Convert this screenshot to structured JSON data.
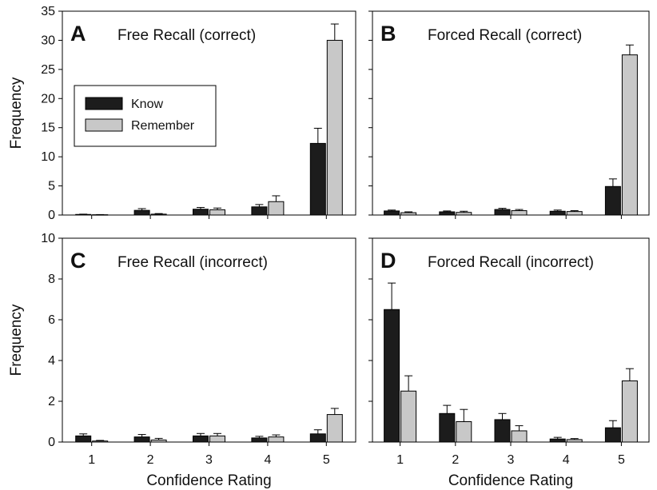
{
  "chart_data": [
    {
      "type": "bar",
      "letter": "A",
      "title": "Free Recall (correct)",
      "categories": [
        "1",
        "2",
        "3",
        "4",
        "5"
      ],
      "ylim": [
        0,
        35
      ],
      "yticks": [
        "0",
        "5",
        "10",
        "15",
        "20",
        "25",
        "30",
        "35"
      ],
      "ylabel": "Frequency",
      "xlabel": "",
      "legend": "upper-left",
      "series": [
        {
          "name": "Know",
          "color": "#1c1c1c",
          "values": [
            0.1,
            0.8,
            1.0,
            1.4,
            12.3
          ],
          "errors": [
            0.05,
            0.3,
            0.3,
            0.4,
            2.6
          ]
        },
        {
          "name": "Remember",
          "color": "#c8c8c8",
          "values": [
            0.05,
            0.15,
            0.9,
            2.3,
            30.0
          ],
          "errors": [
            0.03,
            0.1,
            0.3,
            1.0,
            2.8
          ]
        }
      ]
    },
    {
      "type": "bar",
      "letter": "B",
      "title": "Forced Recall (correct)",
      "categories": [
        "1",
        "2",
        "3",
        "4",
        "5"
      ],
      "ylim": [
        0,
        35
      ],
      "yticks": [],
      "ylabel": "",
      "xlabel": "",
      "series": [
        {
          "name": "Know",
          "color": "#1c1c1c",
          "values": [
            0.7,
            0.55,
            0.95,
            0.65,
            4.9
          ],
          "errors": [
            0.15,
            0.15,
            0.2,
            0.2,
            1.3
          ]
        },
        {
          "name": "Remember",
          "color": "#c8c8c8",
          "values": [
            0.4,
            0.45,
            0.75,
            0.6,
            27.5
          ],
          "errors": [
            0.15,
            0.2,
            0.2,
            0.15,
            1.7
          ]
        }
      ]
    },
    {
      "type": "bar",
      "letter": "C",
      "title": "Free Recall (incorrect)",
      "categories": [
        "1",
        "2",
        "3",
        "4",
        "5"
      ],
      "ylim": [
        0,
        10
      ],
      "yticks": [
        "0",
        "2",
        "4",
        "6",
        "8",
        "10"
      ],
      "ylabel": "Frequency",
      "xlabel": "Confidence Rating",
      "series": [
        {
          "name": "Know",
          "color": "#1c1c1c",
          "values": [
            0.3,
            0.25,
            0.3,
            0.2,
            0.4
          ],
          "errors": [
            0.1,
            0.12,
            0.12,
            0.08,
            0.2
          ]
        },
        {
          "name": "Remember",
          "color": "#c8c8c8",
          "values": [
            0.05,
            0.1,
            0.3,
            0.25,
            1.35
          ],
          "errors": [
            0.03,
            0.08,
            0.12,
            0.1,
            0.3
          ]
        }
      ]
    },
    {
      "type": "bar",
      "letter": "D",
      "title": "Forced Recall (incorrect)",
      "categories": [
        "1",
        "2",
        "3",
        "4",
        "5"
      ],
      "ylim": [
        0,
        10
      ],
      "yticks": [],
      "ylabel": "",
      "xlabel": "Confidence Rating",
      "series": [
        {
          "name": "Know",
          "color": "#1c1c1c",
          "values": [
            6.5,
            1.4,
            1.1,
            0.15,
            0.7
          ],
          "errors": [
            1.3,
            0.4,
            0.3,
            0.08,
            0.35
          ]
        },
        {
          "name": "Remember",
          "color": "#c8c8c8",
          "values": [
            2.5,
            1.0,
            0.55,
            0.12,
            3.0
          ],
          "errors": [
            0.75,
            0.6,
            0.25,
            0.05,
            0.6
          ]
        }
      ]
    }
  ]
}
